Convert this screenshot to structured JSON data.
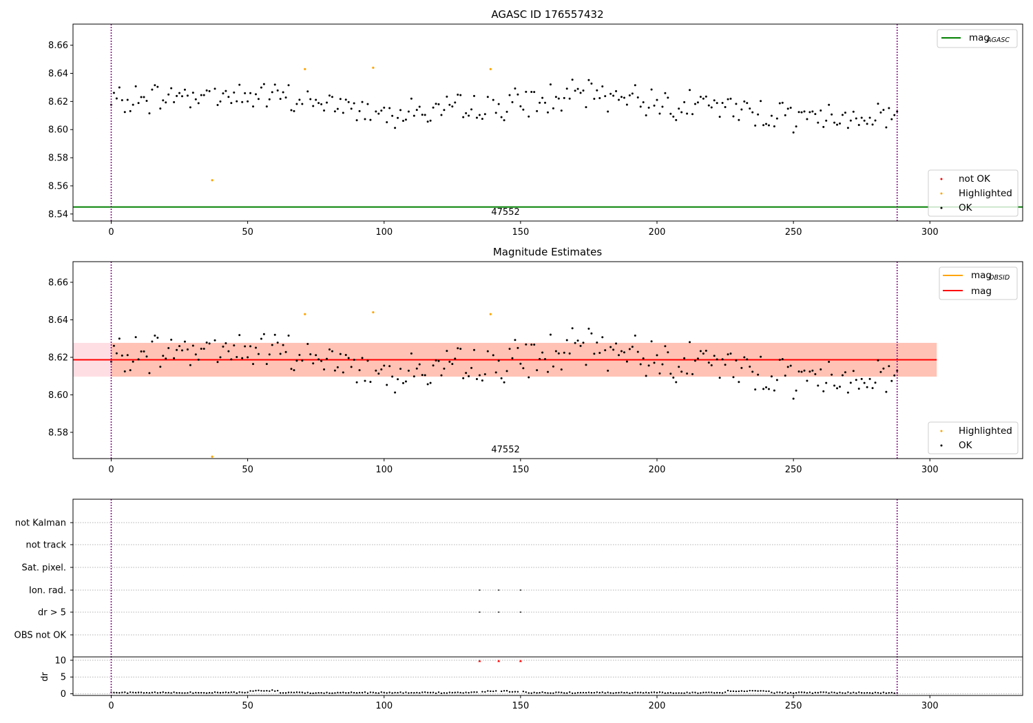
{
  "figure": {
    "x_range": [
      -14,
      334
    ],
    "x_ticks": [
      0,
      50,
      100,
      150,
      200,
      250,
      300
    ],
    "obs_boundaries": [
      0,
      288
    ],
    "obsid_label": "47552",
    "obsid_label_x": 144.5,
    "colors": {
      "ok": "#000000",
      "highlighted": "#ffa500",
      "not_ok": "#ff0000",
      "agasc_line": "#008000",
      "mag_line": "#ff0000",
      "mag_obsid_line": "#ffa500",
      "boundary": "#800080",
      "band_inner": "#ffa07a",
      "band_outer": "#ffb6c1"
    }
  },
  "chart_data": [
    {
      "type": "scatter",
      "title": "AGASC ID 176557432",
      "ylim": [
        8.535,
        8.675
      ],
      "y_ticks": [
        "8.54",
        "8.56",
        "8.58",
        "8.60",
        "8.62",
        "8.64",
        "8.66"
      ],
      "agasc_mag": 8.545,
      "legend_top": {
        "position": "top-right",
        "entries": [
          {
            "label": "mag",
            "sub": "AGASC",
            "style": "line",
            "color": "#008000"
          }
        ]
      },
      "legend_bottom": {
        "position": "bottom-right",
        "entries": [
          {
            "label": "not OK",
            "style": "dot",
            "color": "#ff0000"
          },
          {
            "label": "Highlighted",
            "style": "dot",
            "color": "#ffa500"
          },
          {
            "label": "OK",
            "style": "dot",
            "color": "#000000"
          }
        ]
      },
      "highlighted": [
        [
          37,
          8.564
        ],
        [
          71,
          8.643
        ],
        [
          96,
          8.644
        ],
        [
          139,
          8.643
        ]
      ]
    },
    {
      "type": "scatter",
      "title": "Magnitude Estimates",
      "ylim": [
        8.566,
        8.671
      ],
      "y_ticks": [
        "8.58",
        "8.60",
        "8.62",
        "8.64",
        "8.66"
      ],
      "mag": 8.6187,
      "band_inner": [
        8.6097,
        8.6277
      ],
      "band_outer": [
        8.6097,
        8.6277
      ],
      "band_x": [
        -14,
        302.5
      ],
      "legend_top": {
        "position": "top-right",
        "entries": [
          {
            "label": "mag",
            "sub": "OBSID",
            "style": "line",
            "color": "#ffa500"
          },
          {
            "label": "mag",
            "style": "line",
            "color": "#ff0000"
          }
        ]
      },
      "legend_bottom": {
        "position": "bottom-right",
        "entries": [
          {
            "label": "Highlighted",
            "style": "dot",
            "color": "#ffa500"
          },
          {
            "label": "OK",
            "style": "dot",
            "color": "#000000"
          }
        ]
      },
      "highlighted": [
        [
          37,
          8.567
        ],
        [
          71,
          8.643
        ],
        [
          96,
          8.644
        ],
        [
          139,
          8.643
        ]
      ]
    },
    {
      "type": "scatter",
      "title": "",
      "flag_categories": [
        "not Kalman",
        "not track",
        "Sat. pixel.",
        "Ion. rad.",
        "dr > 5",
        "OBS not OK"
      ],
      "flag_points": [
        {
          "category": "Ion. rad.",
          "x": [
            135,
            142,
            150
          ]
        },
        {
          "category": "dr > 5",
          "x": [
            135,
            142,
            150
          ]
        }
      ],
      "dr_ylabel": "dr",
      "dr_ylim": [
        -0.5,
        11
      ],
      "dr_y_ticks": [
        "0",
        "5",
        "10"
      ],
      "dr_clipped": {
        "x": [
          135,
          142,
          150
        ],
        "y": 10
      }
    }
  ]
}
